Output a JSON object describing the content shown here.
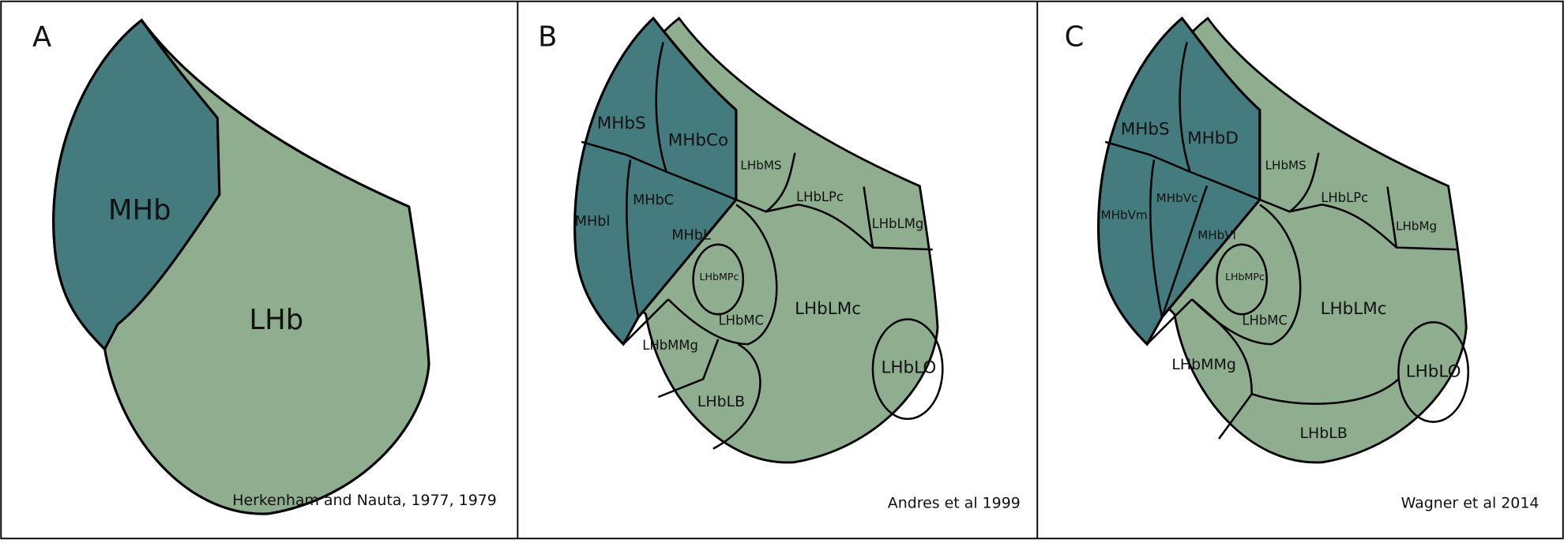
{
  "panels": [
    {
      "letter": "A",
      "citation": "Herkenham and Nauta, 1977, 1979",
      "regions": [
        "MHb",
        "LHb"
      ]
    },
    {
      "letter": "B",
      "citation": "Andres et al 1999",
      "regions": [
        "MHbS",
        "MHbCo",
        "LHbMS",
        "LHbLPc",
        "LHbLMg",
        "MHbl",
        "MHbC",
        "MHbL",
        "LHbMPc",
        "LHbMC",
        "LHbLMc",
        "LHbMMg",
        "LHbLB",
        "LHbLO"
      ]
    },
    {
      "letter": "C",
      "citation": "Wagner et al 2014",
      "regions": [
        "MHbS",
        "MHbD",
        "LHbMS",
        "LHbLPc",
        "LHbMg",
        "MHbVm",
        "MHbVc",
        "MHbVl",
        "LHbMPc",
        "LHbMC",
        "LHbLMc",
        "LHbMMg",
        "LHbLO",
        "LHbLB"
      ]
    }
  ]
}
